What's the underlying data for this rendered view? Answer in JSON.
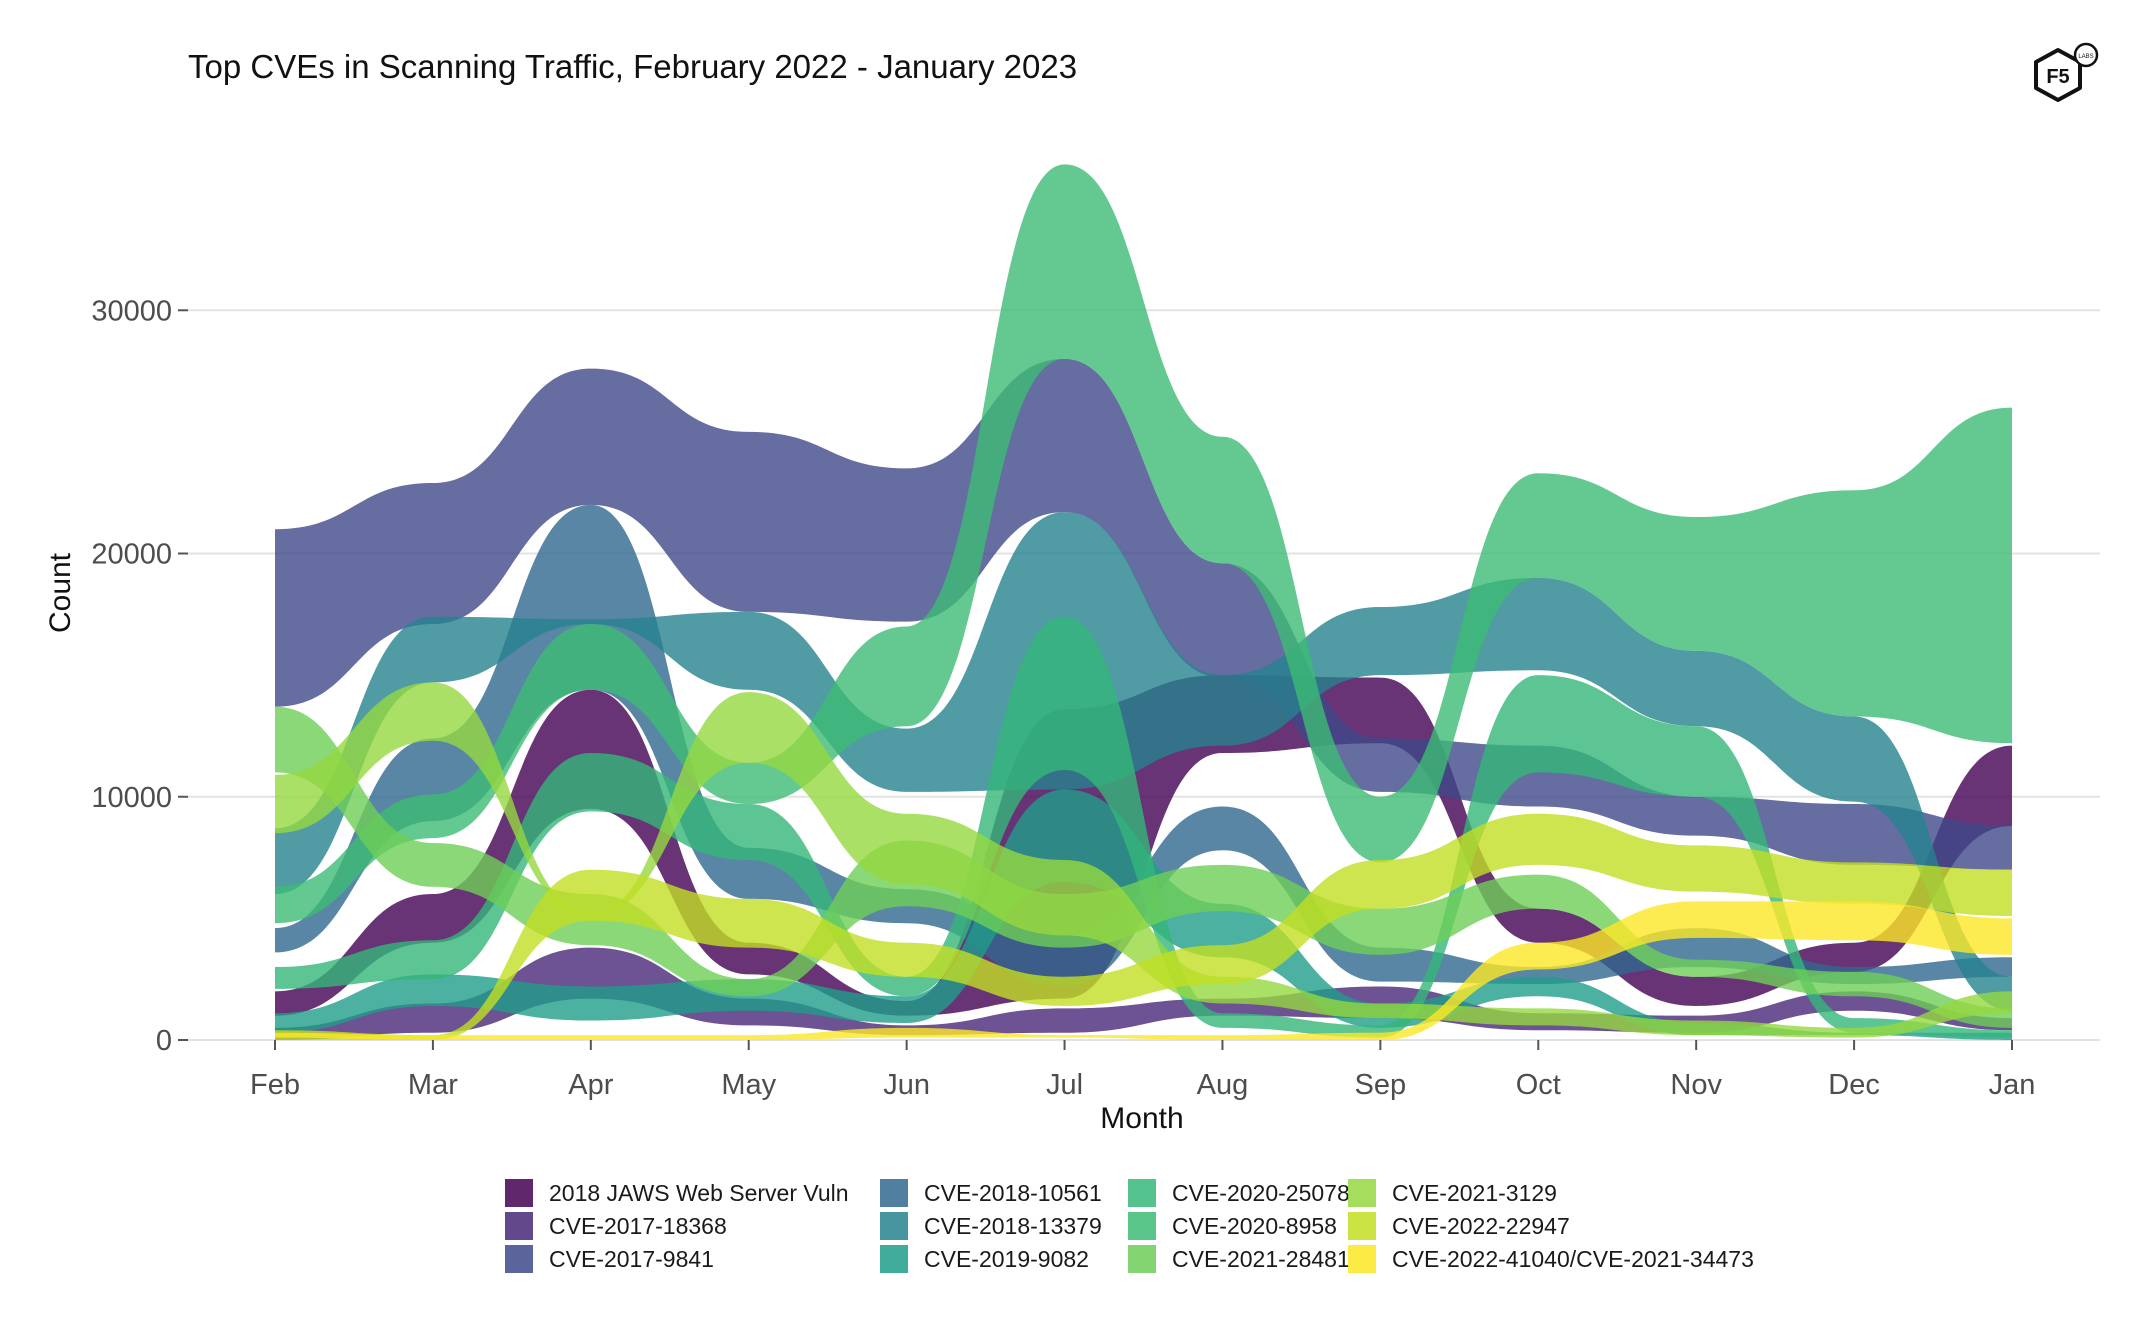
{
  "chart_data": {
    "type": "area",
    "subtype": "stream / ribbon (bump-stacked)",
    "title": "Top CVEs in Scanning Traffic, February 2022 - January 2023",
    "xlabel": "Month",
    "ylabel": "Count",
    "categories": [
      "Feb",
      "Mar",
      "Apr",
      "May",
      "Jun",
      "Jul",
      "Aug",
      "Sep",
      "Oct",
      "Nov",
      "Dec",
      "Jan"
    ],
    "y_ticks": [
      0,
      10000,
      20000,
      30000
    ],
    "y_tick_labels": [
      "0",
      "10000",
      "20000",
      "30000"
    ],
    "ylim": [
      0,
      37000
    ],
    "grid": true,
    "legend_position": "bottom",
    "series": [
      {
        "name": "2018 JAWS Web Server Vuln",
        "color": "#440154",
        "ranges": [
          [
            1000,
            2000
          ],
          [
            4000,
            6000
          ],
          [
            9500,
            14400
          ],
          [
            2700,
            4000
          ],
          [
            1000,
            1600
          ],
          [
            1700,
            13600
          ],
          [
            11800,
            15000
          ],
          [
            12200,
            14900
          ],
          [
            4000,
            5400
          ],
          [
            1400,
            2600
          ],
          [
            2800,
            4000
          ],
          [
            8800,
            12100
          ]
        ]
      },
      {
        "name": "CVE-2017-18368",
        "color": "#482878",
        "ranges": [
          [
            0,
            500
          ],
          [
            300,
            1500
          ],
          [
            1700,
            3800
          ],
          [
            600,
            1700
          ],
          [
            200,
            600
          ],
          [
            300,
            1300
          ],
          [
            1000,
            1700
          ],
          [
            900,
            2200
          ],
          [
            400,
            1100
          ],
          [
            300,
            1000
          ],
          [
            1200,
            2000
          ],
          [
            400,
            900
          ]
        ]
      },
      {
        "name": "CVE-2017-9841",
        "color": "#3e4989",
        "ranges": [
          [
            13700,
            21000
          ],
          [
            17100,
            22900
          ],
          [
            22000,
            27600
          ],
          [
            17600,
            25000
          ],
          [
            17200,
            23500
          ],
          [
            21700,
            28000
          ],
          [
            14900,
            19600
          ],
          [
            10200,
            12400
          ],
          [
            9600,
            12100
          ],
          [
            8400,
            10000
          ],
          [
            7200,
            9700
          ],
          [
            7000,
            8800
          ]
        ]
      },
      {
        "name": "CVE-2018-10561",
        "color": "#31688e",
        "ranges": [
          [
            3600,
            4600
          ],
          [
            9000,
            12400
          ],
          [
            14400,
            22000
          ],
          [
            5800,
            7900
          ],
          [
            4800,
            6200
          ],
          [
            2200,
            4300
          ],
          [
            7800,
            9600
          ],
          [
            2400,
            3800
          ],
          [
            2300,
            3000
          ],
          [
            3000,
            4600
          ],
          [
            2300,
            3000
          ],
          [
            2600,
            3400
          ]
        ]
      },
      {
        "name": "CVE-2018-13379",
        "color": "#26828e",
        "ranges": [
          [
            6000,
            8700
          ],
          [
            14700,
            17400
          ],
          [
            17100,
            17300
          ],
          [
            14400,
            17600
          ],
          [
            10200,
            12800
          ],
          [
            10300,
            21700
          ],
          [
            12100,
            15000
          ],
          [
            15000,
            17800
          ],
          [
            15200,
            19000
          ],
          [
            12900,
            16000
          ],
          [
            9800,
            13300
          ],
          [
            1200,
            2600
          ]
        ]
      },
      {
        "name": "CVE-2019-9082",
        "color": "#1f9e89",
        "ranges": [
          [
            300,
            1100
          ],
          [
            1400,
            2700
          ],
          [
            800,
            2200
          ],
          [
            1200,
            2500
          ],
          [
            700,
            1800
          ],
          [
            6500,
            10300
          ],
          [
            3400,
            5600
          ],
          [
            500,
            1500
          ],
          [
            1800,
            2600
          ],
          [
            200,
            700
          ],
          [
            200,
            300
          ],
          [
            0,
            300
          ]
        ]
      },
      {
        "name": "CVE-2020-25078",
        "color": "#35b779",
        "ranges": [
          [
            2100,
            3000
          ],
          [
            2500,
            4100
          ],
          [
            9400,
            11800
          ],
          [
            7400,
            9700
          ],
          [
            1800,
            2600
          ],
          [
            11100,
            17400
          ],
          [
            500,
            1100
          ],
          [
            100,
            600
          ],
          [
            11000,
            15000
          ],
          [
            10000,
            12900
          ],
          [
            300,
            900
          ],
          [
            100,
            400
          ]
        ]
      },
      {
        "name": "CVE-2020-8958",
        "color": "#3dbc74",
        "ranges": [
          [
            4800,
            6300
          ],
          [
            8300,
            10100
          ],
          [
            14400,
            17100
          ],
          [
            9700,
            11400
          ],
          [
            12900,
            17000
          ],
          [
            28000,
            36000
          ],
          [
            19600,
            24800
          ],
          [
            7300,
            10000
          ],
          [
            19000,
            23300
          ],
          [
            16000,
            21500
          ],
          [
            13300,
            22600
          ],
          [
            12200,
            26000
          ]
        ]
      },
      {
        "name": "CVE-2021-28481",
        "color": "#6ece58",
        "ranges": [
          [
            11000,
            13700
          ],
          [
            6300,
            8100
          ],
          [
            3900,
            6000
          ],
          [
            1800,
            2500
          ],
          [
            5500,
            8200
          ],
          [
            3800,
            6000
          ],
          [
            5300,
            7200
          ],
          [
            3500,
            5400
          ],
          [
            5400,
            6800
          ],
          [
            2600,
            3300
          ],
          [
            1800,
            2800
          ],
          [
            500,
            1300
          ]
        ]
      },
      {
        "name": "CVE-2021-3129",
        "color": "#95d840",
        "ranges": [
          [
            8500,
            10900
          ],
          [
            12300,
            14700
          ],
          [
            5100,
            5200
          ],
          [
            11400,
            14300
          ],
          [
            6400,
            9300
          ],
          [
            4300,
            7400
          ],
          [
            1500,
            2600
          ],
          [
            900,
            1500
          ],
          [
            600,
            1300
          ],
          [
            200,
            800
          ],
          [
            100,
            500
          ],
          [
            1100,
            2000
          ]
        ]
      },
      {
        "name": "CVE-2022-22947",
        "color": "#c2df23",
        "ranges": [
          [
            0,
            400
          ],
          [
            0,
            200
          ],
          [
            4900,
            7000
          ],
          [
            3800,
            5800
          ],
          [
            2600,
            4000
          ],
          [
            1400,
            2600
          ],
          [
            2300,
            3900
          ],
          [
            5400,
            7400
          ],
          [
            7200,
            9300
          ],
          [
            6100,
            8000
          ],
          [
            5600,
            7300
          ],
          [
            5100,
            7000
          ]
        ]
      },
      {
        "name": "CVE-2022-41040/CVE-2021-34473",
        "color": "#fde725",
        "ranges": [
          [
            100,
            300
          ],
          [
            0,
            200
          ],
          [
            0,
            200
          ],
          [
            0,
            200
          ],
          [
            100,
            500
          ],
          [
            100,
            200
          ],
          [
            0,
            200
          ],
          [
            0,
            300
          ],
          [
            2900,
            4000
          ],
          [
            4200,
            5700
          ],
          [
            4100,
            5700
          ],
          [
            3500,
            5000
          ]
        ]
      }
    ]
  },
  "logo": {
    "text": "F5",
    "badge": "LABS"
  }
}
